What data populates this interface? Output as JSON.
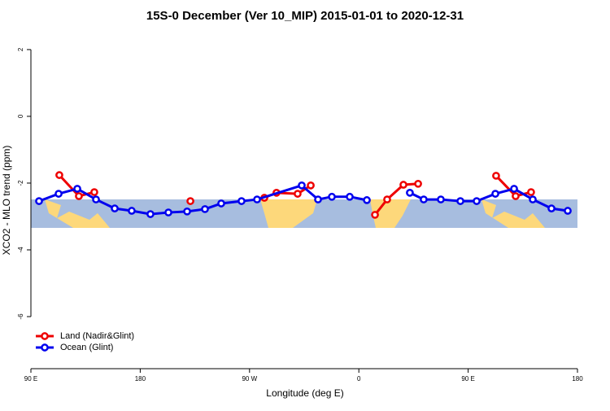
{
  "chart_data": {
    "type": "line",
    "title": "15S-0 December (Ver 10_MIP)   2015-01-01 to 2020-12-31",
    "xlabel": "Longitude (deg E)",
    "ylabel": "XCO2 - MLO trend (ppm)",
    "xlim": [
      90,
      540
    ],
    "ylim": [
      -7.56,
      2.51
    ],
    "xticks": [
      {
        "value": 90,
        "label": "90 E"
      },
      180,
      {
        "value": 270,
        "label": "90 W"
      },
      {
        "value": 360,
        "label": "0"
      },
      {
        "value": 450,
        "label": "90 E"
      },
      {
        "value": 540,
        "label": "180"
      }
    ],
    "yticks": [
      -6,
      -4,
      -2,
      0,
      2
    ],
    "legend": "bottom-left",
    "series": [
      {
        "name": "Land (Nadir&Glint)",
        "color": "#ee0000",
        "x": [
          113.4,
          129.5,
          142.2,
          null,
          221.3,
          null,
          282.2,
          292.2,
          309.6,
          320.4,
          null,
          373.3,
          383.3,
          396.7,
          408.8,
          null,
          473,
          489.1,
          501.8
        ],
        "values": [
          -1.76,
          -2.39,
          -2.27,
          null,
          -2.54,
          null,
          -2.44,
          -2.29,
          -2.32,
          -2.07,
          null,
          -2.95,
          -2.49,
          -2.05,
          -2.02,
          null,
          -1.78,
          -2.39,
          -2.27
        ]
      },
      {
        "name": "Ocean (Glint)",
        "color": "#0000ee",
        "x": [
          96.7,
          112.8,
          128.2,
          143.6,
          159,
          173,
          188.4,
          203.2,
          218.6,
          233.3,
          246.7,
          263.4,
          276.2,
          313,
          326.4,
          337.8,
          352.5,
          366.6,
          null,
          402,
          413.4,
          427.5,
          443.6,
          457,
          472.4,
          487.8,
          503.2,
          518.6,
          532
        ],
        "values": [
          -2.54,
          -2.32,
          -2.17,
          -2.49,
          -2.76,
          -2.83,
          -2.93,
          -2.88,
          -2.85,
          -2.78,
          -2.61,
          -2.54,
          -2.49,
          -2.07,
          -2.49,
          -2.41,
          -2.41,
          -2.51,
          null,
          -2.29,
          -2.49,
          -2.49,
          -2.54,
          -2.54,
          -2.32,
          -2.17,
          -2.49,
          -2.76,
          -2.83
        ]
      }
    ]
  }
}
